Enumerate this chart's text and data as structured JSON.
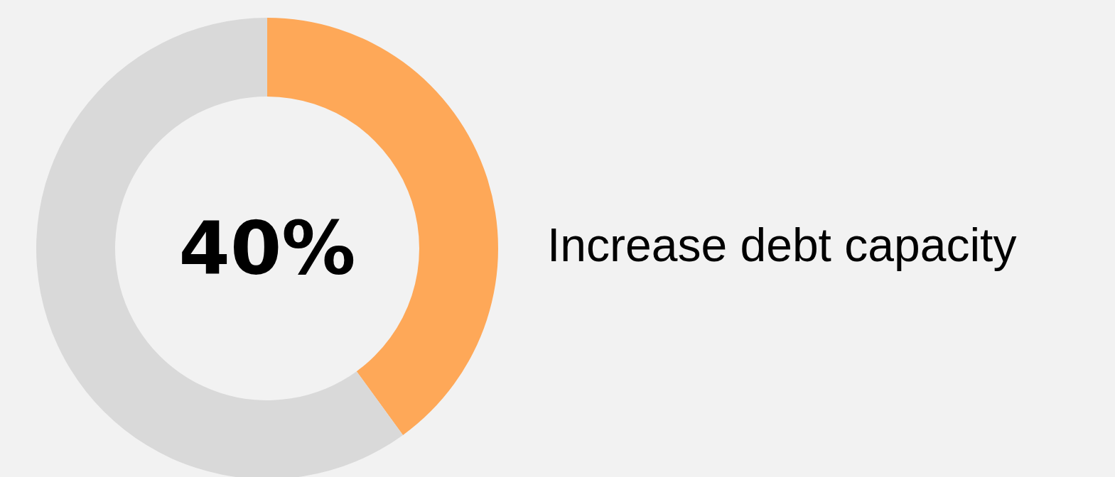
{
  "chart_data": {
    "type": "donut",
    "title": "Increase debt capacity",
    "categories": [
      null,
      null
    ],
    "values": [
      40,
      60
    ],
    "colors": [
      "#fea858",
      "#d9d9d9"
    ],
    "value_labels": [
      "40%",
      null
    ]
  }
}
